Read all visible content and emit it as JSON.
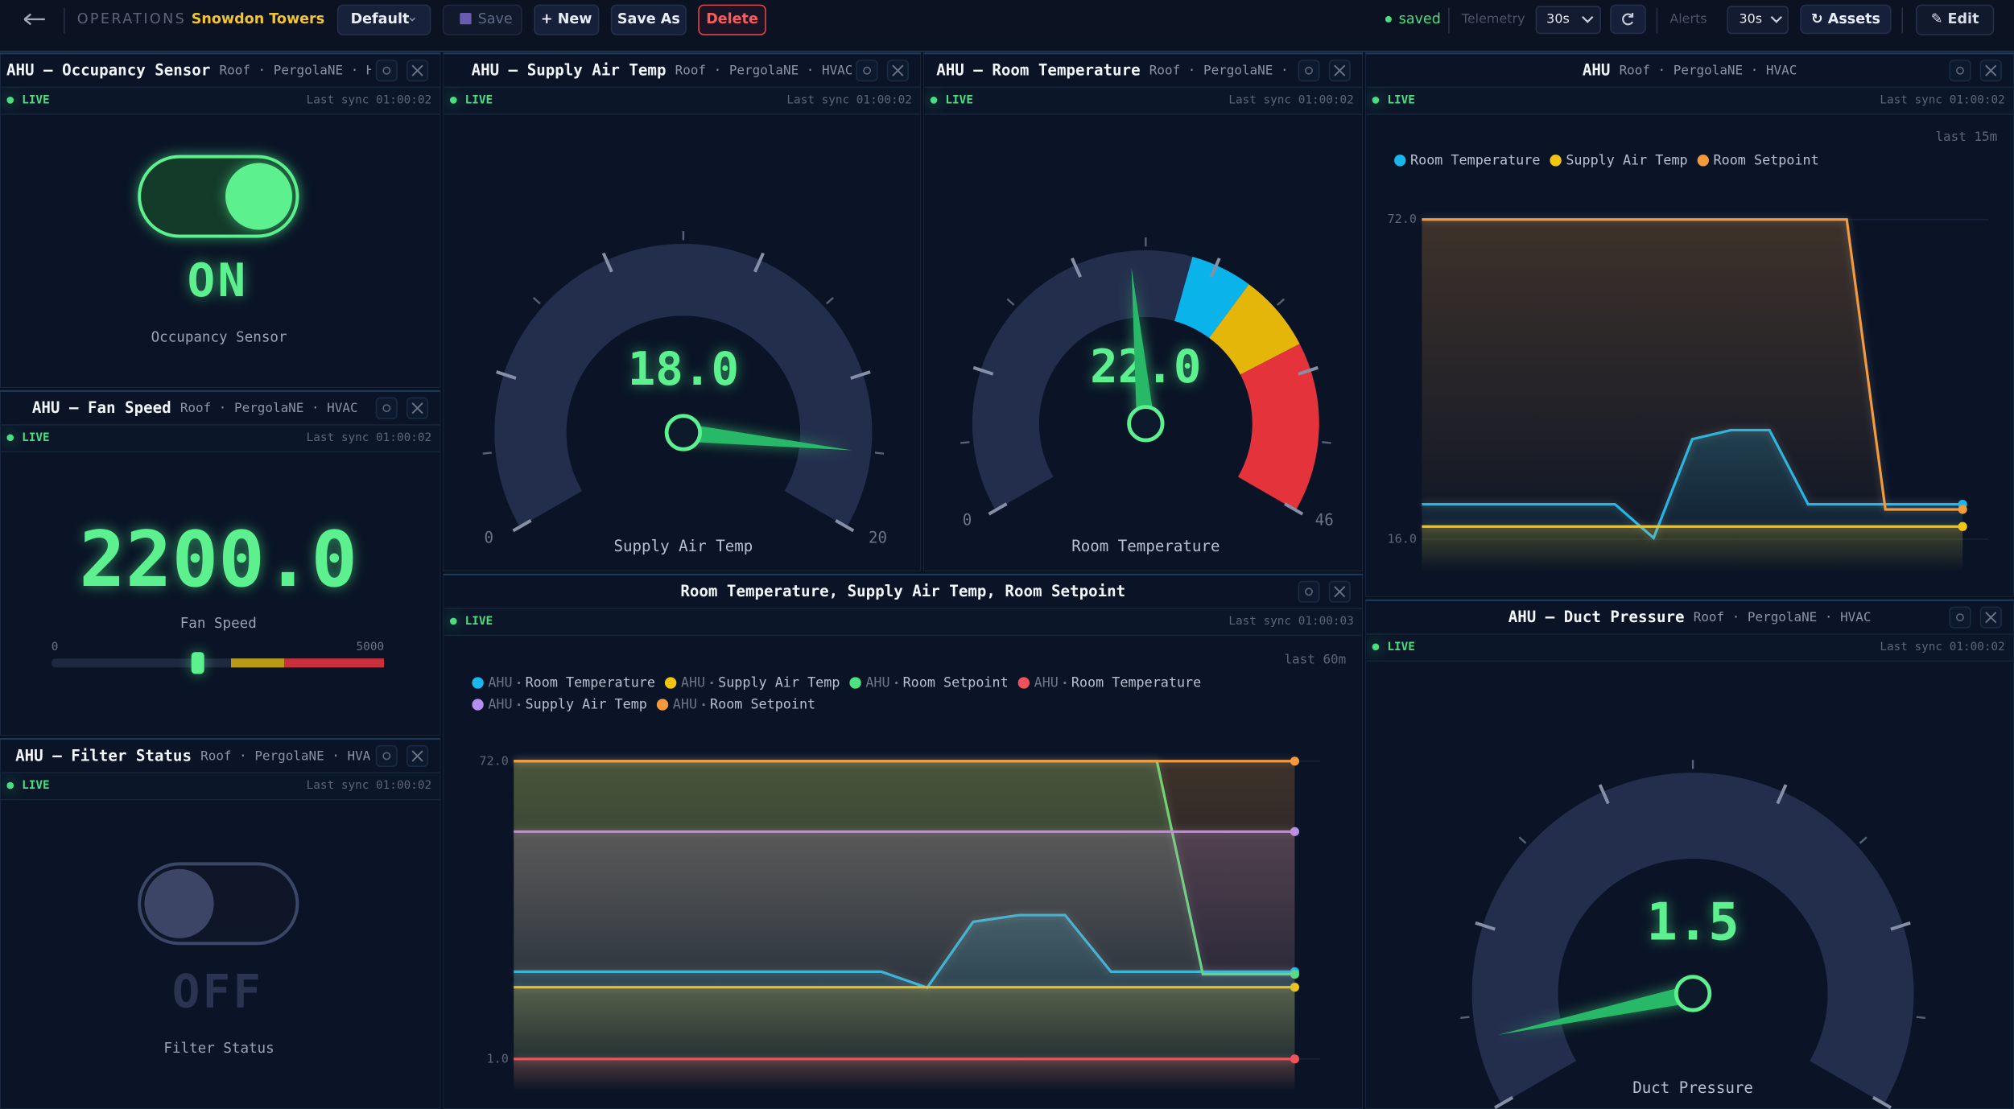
{
  "toolbar": {
    "section": "OPERATIONS",
    "site": "Snowdon Towers",
    "layout": "Default",
    "save": "Save",
    "new": "+ New",
    "save_as": "Save As",
    "delete": "Delete",
    "status": "saved",
    "telemetry_label": "Telemetry",
    "telemetry_value": "30s",
    "alerts_label": "Alerts",
    "alerts_value": "30s",
    "assets": "↻ Assets",
    "edit": "✎ Edit"
  },
  "widgets": [
    {
      "type": "toggle",
      "title": "AHU — Occupancy Sensor",
      "location": "Roof · PergolaNE · HVA",
      "status": "LIVE",
      "sync": "Last sync 01:00:02",
      "on": true,
      "state": "ON",
      "caption": "Occupancy Sensor"
    },
    {
      "type": "readout",
      "title": "AHU — Fan Speed",
      "location": "Roof · PergolaNE · HVAC",
      "status": "LIVE",
      "sync": "Last sync 01:00:02",
      "value": 2200,
      "label": "2200.0",
      "caption": "Fan Speed",
      "min": 0,
      "max": 5000,
      "bands": [
        {
          "from": 2700,
          "to": 3500,
          "color": "#b89a16"
        },
        {
          "from": 3500,
          "to": 5000,
          "color": "#c8303c"
        }
      ]
    },
    {
      "type": "toggle",
      "title": "AHU — Filter Status",
      "location": "Roof · PergolaNE · HVAC",
      "status": "LIVE",
      "sync": "Last sync 01:00:02",
      "on": false,
      "state": "OFF",
      "caption": "Filter Status"
    },
    {
      "type": "gauge",
      "title": "AHU — Supply Air Temp",
      "location": "Roof · PergolaNE · HVAC",
      "status": "LIVE",
      "sync": "Last sync 01:00:02",
      "value": 18,
      "label": "18.0",
      "min": 0,
      "max": 20,
      "caption": "Supply Air Temp",
      "bands": []
    },
    {
      "type": "gauge",
      "title": "AHU — Room Temperature",
      "location": "Roof · PergolaNE · HVA",
      "status": "LIVE",
      "sync": "Last sync 01:00:02",
      "value": 22,
      "label": "22.0",
      "min": 0,
      "max": 46,
      "caption": "Room Temperature",
      "bands": [
        {
          "from": 26,
          "to": 30,
          "color": "#0ab4ea"
        },
        {
          "from": 30,
          "to": 35,
          "color": "#e5b60a"
        },
        {
          "from": 35,
          "to": 46,
          "color": "#e5333b"
        }
      ]
    },
    {
      "type": "trend",
      "title": "AHU",
      "location": "Roof · PergolaNE · HVAC",
      "status": "LIVE",
      "sync": "Last sync 01:00:02",
      "range": "last 15m",
      "ylim": [
        16,
        72
      ],
      "yticks": [
        {
          "value": 72,
          "label": "72.0"
        },
        {
          "value": 16,
          "label": "16.0"
        }
      ],
      "series": [
        {
          "name": "Room Temperature",
          "color": "#19b8ec",
          "values": [
            22.1,
            22.1,
            22.1,
            22.1,
            22.1,
            22.1,
            16.2,
            33.5,
            35.1,
            35.1,
            22.1,
            22.1,
            22.1,
            22.1,
            22.1
          ]
        },
        {
          "name": "Supply Air Temp",
          "color": "#f2c511",
          "values": [
            18.2,
            18.2,
            18.2,
            18.2,
            18.2,
            18.2,
            18.2,
            18.2,
            18.2,
            18.2,
            18.2,
            18.2,
            18.2,
            18.2,
            18.2
          ]
        },
        {
          "name": "Room Setpoint",
          "color": "#f59a3a",
          "values": [
            72,
            72,
            72,
            72,
            72,
            72,
            72,
            72,
            72,
            72,
            72,
            72,
            21.2,
            21.2,
            21.2
          ]
        }
      ]
    },
    {
      "type": "trend",
      "title": "Room Temperature, Supply Air Temp, Room Setpoint",
      "status": "LIVE",
      "sync": "Last sync 01:00:03",
      "range": "last 60m",
      "ylim": [
        1,
        72
      ],
      "yticks": [
        {
          "value": 72,
          "label": "72.0"
        },
        {
          "value": 1,
          "label": "1.0"
        }
      ],
      "series": [
        {
          "source": "AHU",
          "name": "Room Temperature",
          "color": "#19b8ec",
          "values": [
            21.8,
            21.8,
            21.8,
            21.8,
            21.8,
            21.8,
            21.8,
            21.8,
            21.8,
            18,
            33.7,
            35.3,
            35.3,
            21.8,
            21.8,
            21.8,
            21.8,
            21.8
          ]
        },
        {
          "source": "AHU",
          "name": "Supply Air Temp",
          "color": "#f2c511",
          "values": [
            18.1,
            18.1,
            18.1,
            18.1,
            18.1,
            18.1,
            18.1,
            18.1,
            18.1,
            18.1,
            18.1,
            18.1,
            18.1,
            18.1,
            18.1,
            18.1,
            18.1,
            18.1
          ]
        },
        {
          "source": "AHU",
          "name": "Room Setpoint",
          "color": "#4ee27e",
          "values": [
            72,
            72,
            72,
            72,
            72,
            72,
            72,
            72,
            72,
            72,
            72,
            72,
            72,
            72,
            72,
            21.2,
            21.2,
            21.2
          ]
        },
        {
          "source": "AHU",
          "name": "Room Temperature",
          "color": "#f0515a",
          "values": [
            1,
            1,
            1,
            1,
            1,
            1,
            1,
            1,
            1,
            1,
            1,
            1,
            1,
            1,
            1,
            1,
            1,
            1
          ]
        },
        {
          "source": "AHU",
          "name": "Supply Air Temp",
          "color": "#b48ef0",
          "values": [
            55.2,
            55.2,
            55.2,
            55.2,
            55.2,
            55.2,
            55.2,
            55.2,
            55.2,
            55.2,
            55.2,
            55.2,
            55.2,
            55.2,
            55.2,
            55.2,
            55.2,
            55.2
          ]
        },
        {
          "source": "AHU",
          "name": "Room Setpoint",
          "color": "#f59a3a",
          "values": [
            72,
            72,
            72,
            72,
            72,
            72,
            72,
            72,
            72,
            72,
            72,
            72,
            72,
            72,
            72,
            72,
            72,
            72
          ]
        }
      ]
    },
    {
      "type": "gauge",
      "title": "AHU — Duct Pressure",
      "location": "Roof · PergolaNE · HVAC",
      "status": "LIVE",
      "sync": "Last sync 01:00:02",
      "value": 1.5,
      "label": "1.5",
      "min": 0,
      "max": 20,
      "caption": "Duct Pressure",
      "bands": []
    }
  ]
}
